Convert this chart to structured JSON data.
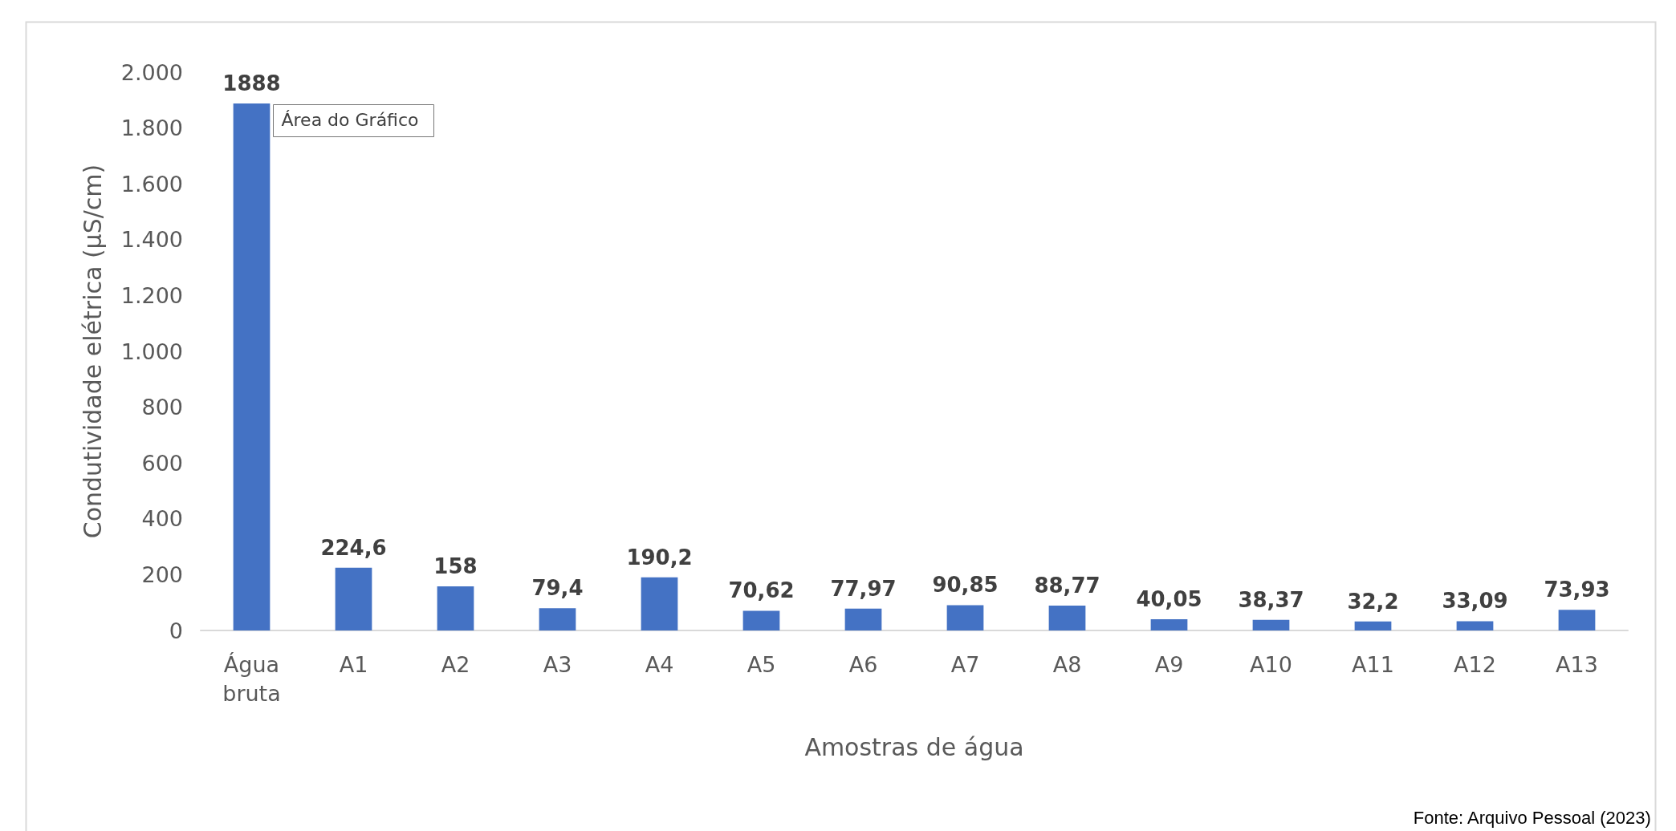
{
  "chart_data": {
    "type": "bar",
    "xlabel": "Amostras de água",
    "ylabel": "Condutividade elétrica (µS/cm)",
    "categories": [
      "Água\nbruta",
      "A1",
      "A2",
      "A3",
      "A4",
      "A5",
      "A6",
      "A7",
      "A8",
      "A9",
      "A10",
      "A11",
      "A12",
      "A13"
    ],
    "values": [
      1888,
      224.6,
      158,
      79.4,
      190.2,
      70.62,
      77.97,
      90.85,
      88.77,
      40.05,
      38.37,
      32.2,
      33.09,
      73.93
    ],
    "value_labels": [
      "1888",
      "224,6",
      "158",
      "79,4",
      "190,2",
      "70,62",
      "77,97",
      "90,85",
      "88,77",
      "40,05",
      "38,37",
      "32,2",
      "33,09",
      "73,93"
    ],
    "color": "#4472c4",
    "ylim": [
      0,
      2000
    ],
    "yticks": [
      0,
      200,
      400,
      600,
      800,
      {
        "value": 1000,
        "label": "1.000"
      },
      {
        "value": 1200,
        "label": "1.200"
      },
      {
        "value": 1400,
        "label": "1.400"
      },
      {
        "value": 1600,
        "label": "1.600"
      },
      {
        "value": 1800,
        "label": "1.800"
      },
      {
        "value": 2000,
        "label": "2.000"
      }
    ],
    "grid": false,
    "annotations": [
      "Área do Gráfico",
      "Fonte: Arquivo Pessoal (2023)"
    ]
  }
}
